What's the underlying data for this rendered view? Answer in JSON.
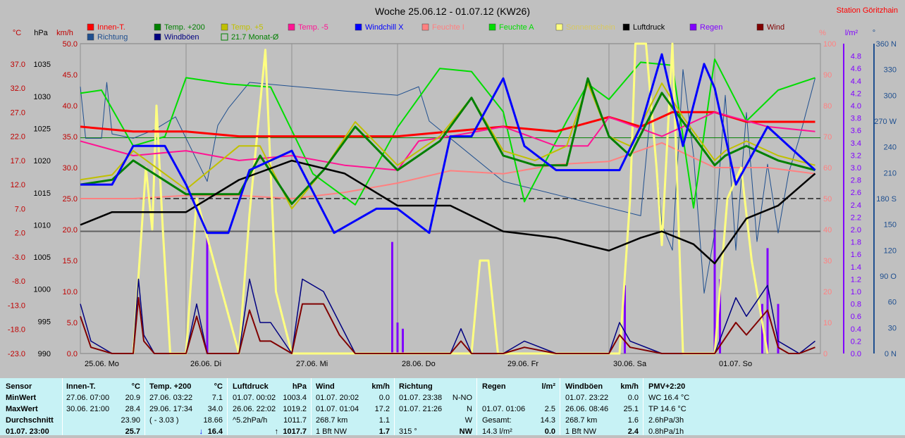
{
  "title": "Woche 25.06.12 - 01.07.12 (KW26)",
  "station": "Station Göritzhain",
  "legend": [
    {
      "label": "Innen-T.",
      "color": "#ff0000"
    },
    {
      "label": "Temp. +200",
      "color": "#008000"
    },
    {
      "label": "Temp. +5",
      "color": "#c0c000"
    },
    {
      "label": "Temp. -5",
      "color": "#ff1493"
    },
    {
      "label": "Windchill X",
      "color": "#0000ff"
    },
    {
      "label": "Feuchte I",
      "color": "#ff8080"
    },
    {
      "label": "Feuchte A",
      "color": "#00dd00"
    },
    {
      "label": "Sonnenschein",
      "color": "#ffff80"
    },
    {
      "label": "Luftdruck",
      "color": "#000000"
    },
    {
      "label": "Regen",
      "color": "#8000ff"
    },
    {
      "label": "Wind",
      "color": "#800000"
    },
    {
      "label": "Richtung",
      "color": "#1f4f8f"
    },
    {
      "label": "Windböen",
      "color": "#000080"
    },
    {
      "label": "21.7 Monat-Ø",
      "color": "#008000"
    }
  ],
  "axis_headers": {
    "temp": "°C",
    "press": "hPa",
    "wind": "km/h",
    "hum": "%",
    "rain": "l/m²",
    "dir": "°"
  },
  "chart_data": {
    "type": "line",
    "title": "Woche 25.06.12 - 01.07.12 (KW26)",
    "x_labels": [
      "25.06. Mo",
      "26.06. Di",
      "27.06. Mi",
      "28.06. Do",
      "29.06. Fr",
      "30.06. Sa",
      "01.07. So"
    ],
    "axes": {
      "temp": {
        "unit": "°C",
        "range": [
          -23,
          41.2
        ],
        "ticks": [
          "37.0",
          "32.0",
          "27.0",
          "22.0",
          "17.0",
          "12.0",
          "7.0",
          "2.0",
          "-3.0",
          "-8.0",
          "-13.0",
          "-18.0",
          "-23.0"
        ]
      },
      "press": {
        "unit": "hPa",
        "range": [
          990,
          1038.2
        ],
        "ticks": [
          "1035",
          "1030",
          "1025",
          "1020",
          "1015",
          "1010",
          "1005",
          "1000",
          "995",
          "990"
        ]
      },
      "wind": {
        "unit": "km/h",
        "range": [
          0,
          50
        ],
        "ticks": [
          "50.0",
          "45.0",
          "40.0",
          "35.0",
          "30.0",
          "25.0",
          "20.0",
          "15.0",
          "10.0",
          "5.0",
          "0.0"
        ]
      },
      "hum": {
        "unit": "%",
        "range": [
          0,
          100
        ],
        "ticks": [
          "100",
          "90",
          "80",
          "70",
          "60",
          "50",
          "40",
          "30",
          "20",
          "10",
          "0"
        ]
      },
      "rain": {
        "unit": "l/m²",
        "range": [
          0,
          5
        ],
        "ticks": [
          "4.8",
          "4.6",
          "4.4",
          "4.2",
          "4.0",
          "3.8",
          "3.6",
          "3.4",
          "3.2",
          "3.0",
          "2.8",
          "2.6",
          "2.4",
          "2.2",
          "2.0",
          "1.8",
          "1.6",
          "1.4",
          "1.2",
          "1.0",
          "0.8",
          "0.6",
          "0.4",
          "0.2",
          "0.0"
        ]
      },
      "dir": {
        "unit": "°",
        "range": [
          0,
          360
        ],
        "ticks": [
          "360 N",
          "330",
          "300",
          "270 W",
          "240",
          "210",
          "180 S",
          "150",
          "120",
          "90 O",
          "60",
          "30",
          "0 N"
        ]
      }
    },
    "reference_lines": [
      {
        "name": "21.7 Monat-Ø",
        "value": 21.7,
        "axis": "temp"
      }
    ],
    "series": [
      {
        "name": "Innen-T.",
        "axis": "temp",
        "color": "#ff0000",
        "width": 3,
        "x": [
          0,
          0.5,
          1,
          1.5,
          2,
          2.5,
          3,
          3.5,
          4,
          4.5,
          5,
          5.3,
          5.6,
          6,
          6.3,
          6.6,
          6.95
        ],
        "y": [
          24,
          23,
          23,
          22,
          22,
          22,
          22,
          23,
          24,
          23,
          26,
          24,
          27,
          27,
          25,
          25,
          25
        ]
      },
      {
        "name": "Temp. -5",
        "axis": "temp",
        "color": "#ff1493",
        "width": 2,
        "x": [
          0,
          0.5,
          1,
          1.5,
          2,
          2.5,
          3,
          3.2,
          3.5,
          4,
          4.5,
          4.8,
          5,
          5.5,
          6,
          6.5,
          6.95
        ],
        "y": [
          21,
          18,
          19,
          17,
          18,
          16,
          15,
          21,
          22,
          24,
          20,
          20,
          26,
          22,
          27,
          24,
          23
        ]
      },
      {
        "name": "Feuchte I",
        "axis": "hum",
        "color": "#ff8080",
        "width": 2,
        "x": [
          0,
          0.5,
          1,
          1.5,
          2,
          2.5,
          3,
          3.5,
          4,
          4.5,
          5,
          5.5,
          6,
          6.5,
          6.95
        ],
        "y": [
          50,
          50,
          51,
          51,
          50,
          52,
          55,
          59,
          58,
          61,
          62,
          68,
          60,
          60,
          58
        ]
      },
      {
        "name": "Feuchte A",
        "axis": "hum",
        "color": "#00dd00",
        "width": 2,
        "x": [
          0,
          0.2,
          0.5,
          0.8,
          1,
          1.4,
          1.8,
          2.2,
          2.6,
          3,
          3.4,
          3.7,
          4,
          4.2,
          4.6,
          4.8,
          5,
          5.3,
          5.6,
          5.8,
          6,
          6.3,
          6.6,
          6.95
        ],
        "y": [
          84,
          85,
          67,
          70,
          89,
          87,
          86,
          58,
          48,
          73,
          92,
          91,
          78,
          49,
          75,
          87,
          82,
          94,
          93,
          47,
          95,
          75,
          85,
          89
        ]
      },
      {
        "name": "Temp. +5",
        "axis": "temp",
        "color": "#c0c000",
        "width": 2,
        "x": [
          0,
          0.3,
          0.5,
          1,
          1.5,
          1.7,
          2,
          2.3,
          2.6,
          3,
          3.4,
          3.7,
          4,
          4.3,
          4.6,
          4.8,
          5,
          5.2,
          5.5,
          5.7,
          6,
          6.1,
          6.3,
          6.6,
          6.95
        ],
        "y": [
          13,
          14,
          19,
          11,
          20,
          20,
          7,
          15,
          25,
          16,
          22,
          30,
          19,
          17,
          20,
          33,
          22,
          20,
          33,
          26,
          17,
          19,
          21,
          18,
          16
        ]
      },
      {
        "name": "Temp. +200",
        "axis": "temp",
        "color": "#008000",
        "width": 3,
        "x": [
          0,
          0.3,
          0.5,
          1,
          1.5,
          1.7,
          2,
          2.3,
          2.6,
          3,
          3.4,
          3.7,
          4,
          4.3,
          4.6,
          4.8,
          5,
          5.2,
          5.5,
          5.7,
          6,
          6.1,
          6.3,
          6.6,
          6.95
        ],
        "y": [
          12,
          13,
          17,
          10,
          10,
          18,
          8,
          15,
          24,
          15,
          21,
          30,
          18,
          16,
          16,
          34,
          22,
          18,
          31,
          25,
          16,
          18,
          20,
          17,
          15
        ]
      },
      {
        "name": "Windchill X",
        "axis": "temp",
        "color": "#0000ff",
        "width": 3,
        "x": [
          0,
          0.3,
          0.5,
          0.8,
          1,
          1.2,
          1.4,
          1.6,
          1.8,
          2,
          2.4,
          2.8,
          3,
          3.3,
          3.5,
          3.7,
          4,
          4.2,
          4.5,
          5,
          5.1,
          5.3,
          5.5,
          5.7,
          5.9,
          6,
          6.2,
          6.5,
          6.95
        ],
        "y": [
          12,
          12,
          20,
          20,
          12,
          2,
          2,
          15,
          17,
          19,
          2,
          7,
          7,
          2,
          22,
          22,
          34,
          20,
          15,
          15,
          15,
          24,
          39,
          20,
          37,
          32,
          12,
          24,
          15
        ]
      },
      {
        "name": "Luftdruck",
        "axis": "press",
        "color": "#000000",
        "width": 2.5,
        "x": [
          0,
          0.3,
          0.5,
          1,
          1.5,
          2,
          2.5,
          3,
          3.5,
          4,
          4.5,
          5,
          5.3,
          5.5,
          5.8,
          6,
          6.3,
          6.6,
          6.95
        ],
        "y": [
          1010,
          1012,
          1012,
          1012,
          1017,
          1020,
          1018,
          1013,
          1013,
          1009,
          1008,
          1006,
          1008,
          1009,
          1007,
          1004,
          1011,
          1013,
          1018
        ]
      },
      {
        "name": "Sonnenschein",
        "axis": "hum",
        "color": "#ffff80",
        "width": 3,
        "x": [
          0.5,
          0.62,
          0.68,
          0.72,
          0.78,
          0.85,
          1,
          1.1,
          1.5,
          1.6,
          1.75,
          1.85,
          2.0,
          2.2,
          2.5,
          2.7,
          3.7,
          3.78,
          3.86,
          3.95,
          5.1,
          5.2,
          5.25,
          5.35,
          5.45,
          5.5,
          5.6,
          5.7,
          6,
          6.12,
          6.25,
          6.35,
          6.5
        ],
        "y": [
          0,
          60,
          40,
          80,
          40,
          0,
          0,
          50,
          0,
          45,
          98,
          20,
          0,
          0,
          0,
          0,
          0,
          30,
          30,
          0,
          0,
          50,
          100,
          100,
          60,
          35,
          100,
          0,
          0,
          50,
          60,
          30,
          0
        ]
      },
      {
        "name": "Wind",
        "axis": "wind",
        "color": "#800000",
        "width": 2,
        "x": [
          0,
          0.1,
          0.3,
          0.5,
          0.55,
          0.6,
          0.7,
          0.9,
          1,
          1.1,
          1.2,
          1.3,
          1.5,
          1.6,
          1.7,
          1.8,
          2,
          2.1,
          2.3,
          2.45,
          2.6,
          3,
          3.5,
          3.6,
          3.7,
          3.9,
          4,
          4.2,
          4.5,
          5,
          5.1,
          5.2,
          5.5,
          6,
          6.2,
          6.3,
          6.5,
          6.6,
          6.7,
          6.8,
          6.95
        ],
        "y": [
          6,
          1,
          0,
          0,
          9,
          2,
          0,
          0,
          0,
          6,
          0,
          0,
          0,
          7,
          2,
          2,
          0,
          8,
          8,
          3,
          0,
          0,
          0,
          2,
          0,
          0,
          0,
          1,
          0,
          0,
          3,
          1,
          0,
          0,
          5,
          3,
          7,
          1,
          0,
          0,
          1
        ]
      },
      {
        "name": "Windböen",
        "axis": "wind",
        "color": "#000080",
        "width": 1.5,
        "x": [
          0,
          0.1,
          0.3,
          0.5,
          0.55,
          0.6,
          0.7,
          0.9,
          1,
          1.1,
          1.2,
          1.3,
          1.5,
          1.6,
          1.7,
          1.8,
          2,
          2.1,
          2.3,
          2.45,
          2.6,
          3,
          3.5,
          3.6,
          3.7,
          3.9,
          4,
          4.2,
          4.5,
          5,
          5.1,
          5.2,
          5.5,
          6,
          6.2,
          6.3,
          6.5,
          6.6,
          6.7,
          6.8,
          6.95
        ],
        "y": [
          8,
          2,
          0,
          0,
          12,
          3,
          0,
          0,
          0,
          8,
          0,
          0,
          0,
          12,
          5,
          5,
          0,
          12,
          10,
          5,
          0,
          0,
          0,
          4,
          0,
          0,
          0,
          2,
          0,
          0,
          5,
          2,
          0,
          0,
          9,
          6,
          11,
          2,
          1,
          0,
          2
        ]
      },
      {
        "name": "Richtung",
        "axis": "dir",
        "color": "#1f4f8f",
        "width": 1,
        "x": [
          0,
          0.05,
          0.2,
          0.25,
          0.3,
          0.5,
          0.7,
          0.9,
          1.2,
          1.3,
          1.4,
          1.6,
          2.5,
          3.0,
          3.2,
          3.3,
          4.0,
          5.3,
          5.4,
          5.5,
          5.6,
          5.7,
          5.8,
          5.9,
          6,
          6.1,
          6.2,
          6.3,
          6.4,
          6.5,
          6.6,
          6.7,
          6.8,
          6.95
        ],
        "y": [
          310,
          250,
          250,
          315,
          255,
          250,
          260,
          275,
          200,
          265,
          285,
          315,
          305,
          300,
          310,
          270,
          200,
          160,
          290,
          150,
          120,
          330,
          230,
          70,
          140,
          300,
          120,
          280,
          130,
          220,
          140,
          210,
          250,
          320
        ]
      }
    ],
    "rain_bars": {
      "axis": "rain",
      "color": "#8000ff",
      "x": [
        0.8,
        1.2,
        2.95,
        3.0,
        3.05,
        5.15,
        6.0,
        6.05,
        6.45,
        6.5,
        6.6
      ],
      "y": [
        0.0,
        1.9,
        1.8,
        0.5,
        0.4,
        1.1,
        2.0,
        1.2,
        0.8,
        1.7,
        0.8
      ]
    }
  },
  "stats": {
    "sensor": {
      "title": "Sensor",
      "rows": [
        "MinWert",
        "MaxWert",
        "Durchschnitt",
        "01.07. 23:00"
      ]
    },
    "innen": {
      "title": "Innen-T.",
      "unit": "°C",
      "rows": [
        [
          "27.06.  07:00",
          "20.9"
        ],
        [
          "30.06.  21:00",
          "28.4"
        ],
        [
          "",
          "23.90"
        ],
        [
          "",
          "25.7"
        ]
      ]
    },
    "temp": {
      "title": "Temp. +200",
      "unit": "°C",
      "rows": [
        [
          "27.06.  03:22",
          "7.1"
        ],
        [
          "29.06.  17:34",
          "34.0"
        ],
        [
          "( - 3.03 )",
          "18.66"
        ],
        [
          "↓",
          "16.4"
        ]
      ]
    },
    "druck": {
      "title": "Luftdruck",
      "unit": "hPa",
      "rows": [
        [
          "01.07.  00:02",
          "1003.4"
        ],
        [
          "26.06.  22:02",
          "1019.2"
        ],
        [
          "^5.2hPa/h",
          "1011.7"
        ],
        [
          "↑",
          "1017.7"
        ]
      ]
    },
    "wind": {
      "title": "Wind",
      "unit": "km/h",
      "rows": [
        [
          "01.07.  20:02",
          "0.0"
        ],
        [
          "01.07.  01:04",
          "17.2"
        ],
        [
          "268.7 km",
          "1.1"
        ],
        [
          "1 Bft NW",
          "1.7"
        ]
      ]
    },
    "richtung": {
      "title": "Richtung",
      "rows": [
        [
          "01.07.  23:38",
          "N-NO"
        ],
        [
          "01.07.  21:26",
          "N"
        ],
        [
          "",
          "W"
        ],
        [
          "315 °",
          "NW"
        ]
      ]
    },
    "regen": {
      "title": "Regen",
      "unit": "l/m²",
      "rows": [
        [
          "",
          ""
        ],
        [
          "01.07.  01:06",
          "2.5"
        ],
        [
          "Gesamt:",
          "14.3"
        ],
        [
          "14.3 l/m²",
          "0.0"
        ]
      ]
    },
    "boeen": {
      "title": "Windböen",
      "unit": "km/h",
      "rows": [
        [
          "01.07.  23:22",
          "0.0"
        ],
        [
          "26.06.  08:46",
          "25.1"
        ],
        [
          "268.7 km",
          "1.6"
        ],
        [
          "1 Bft NW",
          "2.4"
        ]
      ]
    },
    "pmv": {
      "title": "PMV+2:20",
      "rows": [
        "WC 16.4 °C",
        "TP 14.6 °C",
        "2.6hPa/3h",
        "0.8hPa/1h"
      ]
    }
  }
}
